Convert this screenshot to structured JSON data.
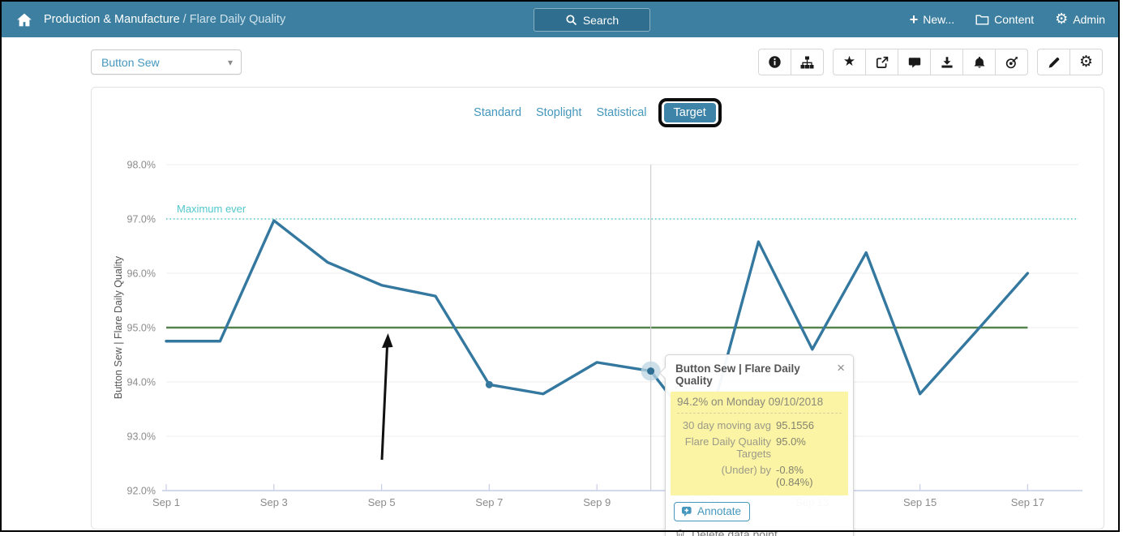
{
  "header": {
    "breadcrumb_section": "Production & Manufacture",
    "breadcrumb_separator": " / ",
    "breadcrumb_page": "Flare Daily Quality",
    "search_label": "Search",
    "nav_new": "New...",
    "nav_content": "Content",
    "nav_admin": "Admin"
  },
  "controls": {
    "dropdown_value": "Button Sew"
  },
  "toolbar_icons": [
    "info",
    "org-chart",
    "favorite",
    "share",
    "comment",
    "download",
    "alerts",
    "goal",
    "edit",
    "settings"
  ],
  "tabs": [
    {
      "label": "Standard",
      "active": false
    },
    {
      "label": "Stoplight",
      "active": false
    },
    {
      "label": "Statistical",
      "active": false
    },
    {
      "label": "Target",
      "active": true
    }
  ],
  "chart_data": {
    "type": "line",
    "dates": [
      "Sep 1",
      "Sep 2",
      "Sep 3",
      "Sep 4",
      "Sep 5",
      "Sep 6",
      "Sep 7",
      "Sep 8",
      "Sep 9",
      "Sep 10",
      "Sep 11",
      "Sep 12",
      "Sep 13",
      "Sep 14",
      "Sep 15",
      "Sep 16",
      "Sep 17"
    ],
    "values": [
      94.75,
      94.75,
      96.97,
      96.2,
      95.78,
      95.58,
      93.95,
      93.78,
      94.36,
      94.2,
      92.93,
      96.58,
      94.6,
      96.38,
      93.78,
      94.88,
      96.0
    ],
    "x_tick_labels": [
      "Sep 1",
      "Sep 3",
      "Sep 5",
      "Sep 7",
      "Sep 9",
      "Sep 11",
      "Sep 13",
      "Sep 15",
      "Sep 17"
    ],
    "ylim": [
      92,
      98
    ],
    "y_tick_suffix": "%",
    "ylabel": "Button Sew | Flare Daily Quality",
    "target": {
      "label": "Flare Daily Quality Targets",
      "value": 95.0
    },
    "max_ever": {
      "label": "Maximum ever",
      "value": 97.0
    },
    "selected_index": 9,
    "dot_index": 6,
    "grid": true,
    "legend": "none"
  },
  "tooltip": {
    "title": "Button Sew | Flare Daily Quality",
    "close_label": "×",
    "headline": "94.2% on Monday 09/10/2018",
    "rows": [
      {
        "label": "30 day moving avg",
        "value": "95.1556"
      },
      {
        "label": "Flare Daily Quality Targets",
        "value": "95.0%"
      },
      {
        "label": "(Under) by",
        "value": "-0.8% (0.84%)"
      }
    ],
    "annotate_label": "Annotate",
    "delete_label": "Delete data point"
  },
  "colors": {
    "header_bg": "#3c7fa0",
    "search_bg": "#2f6e8e",
    "accent_blue": "#4597bd",
    "tab_active_bg": "#3e84a8",
    "line": "#34789f",
    "selected_point": "#2f6f93",
    "halo": "#bcd6e2",
    "target_line": "#55824f",
    "max_ever": "#52c7cb",
    "tooltip_highlight": "#faf4a4"
  }
}
